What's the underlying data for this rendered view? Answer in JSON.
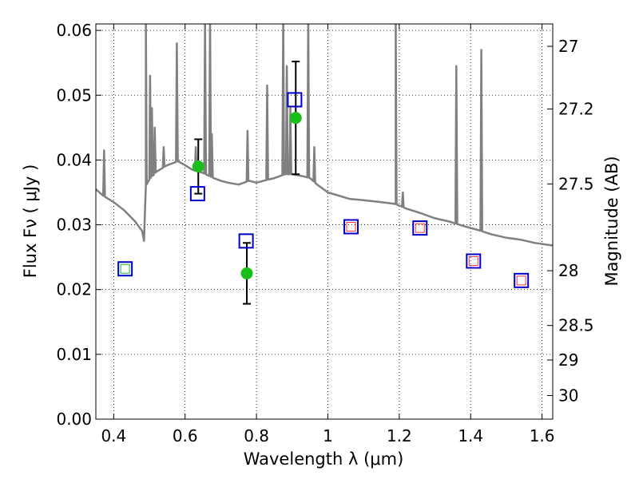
{
  "chart_data": {
    "type": "line",
    "xlabel": "Wavelength  λ (μm)",
    "ylabel": "Flux  Fν  ( μJy )",
    "ylabel_right": "Magnitude (AB)",
    "xlim": [
      0.35,
      1.63
    ],
    "ylim": [
      0.0,
      0.061
    ],
    "x_ticks": [
      0.4,
      0.6,
      0.8,
      1.0,
      1.2,
      1.4,
      1.6
    ],
    "x_tick_labels": [
      "0.4",
      "0.6",
      "0.8",
      "1",
      "1.2",
      "1.4",
      "1.6"
    ],
    "y_ticks": [
      0.0,
      0.01,
      0.02,
      0.03,
      0.04,
      0.05,
      0.06
    ],
    "y_tick_labels": [
      "0.00",
      "0.01",
      "0.02",
      "0.03",
      "0.04",
      "0.05",
      "0.06"
    ],
    "mag_ticks": [
      27,
      27.2,
      27.5,
      28,
      28.5,
      29,
      30
    ],
    "mag_tick_labels": [
      "27",
      "27.2",
      "27.5",
      "28",
      "28.5",
      "29",
      "30"
    ],
    "grid": true,
    "colors": {
      "sed": "#808080",
      "observed": "#19bf19",
      "model": "#0000cc",
      "inner": "#ff3333",
      "errorbar": "#000000"
    },
    "sed_continuum": [
      [
        0.35,
        0.0355
      ],
      [
        0.37,
        0.0345
      ],
      [
        0.4,
        0.0335
      ],
      [
        0.43,
        0.0322
      ],
      [
        0.46,
        0.0305
      ],
      [
        0.48,
        0.029
      ],
      [
        0.485,
        0.0275
      ],
      [
        0.49,
        0.036
      ],
      [
        0.5,
        0.037
      ],
      [
        0.52,
        0.0382
      ],
      [
        0.55,
        0.0392
      ],
      [
        0.58,
        0.0398
      ],
      [
        0.6,
        0.0392
      ],
      [
        0.62,
        0.0385
      ],
      [
        0.65,
        0.038
      ],
      [
        0.68,
        0.0372
      ],
      [
        0.7,
        0.0368
      ],
      [
        0.72,
        0.0365
      ],
      [
        0.75,
        0.0362
      ],
      [
        0.78,
        0.0368
      ],
      [
        0.8,
        0.0365
      ],
      [
        0.82,
        0.0368
      ],
      [
        0.85,
        0.0372
      ],
      [
        0.88,
        0.0378
      ],
      [
        0.9,
        0.0378
      ],
      [
        0.93,
        0.0375
      ],
      [
        0.95,
        0.0372
      ],
      [
        0.97,
        0.0362
      ],
      [
        1.0,
        0.035
      ],
      [
        1.03,
        0.0345
      ],
      [
        1.06,
        0.034
      ],
      [
        1.1,
        0.0338
      ],
      [
        1.15,
        0.0335
      ],
      [
        1.19,
        0.0332
      ],
      [
        1.22,
        0.0325
      ],
      [
        1.26,
        0.0318
      ],
      [
        1.3,
        0.031
      ],
      [
        1.34,
        0.0305
      ],
      [
        1.38,
        0.0298
      ],
      [
        1.42,
        0.0292
      ],
      [
        1.46,
        0.0285
      ],
      [
        1.5,
        0.028
      ],
      [
        1.54,
        0.0277
      ],
      [
        1.58,
        0.0272
      ],
      [
        1.63,
        0.0268
      ]
    ],
    "sed_lines": [
      {
        "x": 0.373,
        "peak": 0.0415
      },
      {
        "x": 0.49,
        "peak": 0.062
      },
      {
        "x": 0.502,
        "peak": 0.053
      },
      {
        "x": 0.507,
        "peak": 0.048
      },
      {
        "x": 0.515,
        "peak": 0.045
      },
      {
        "x": 0.54,
        "peak": 0.042
      },
      {
        "x": 0.577,
        "peak": 0.058
      },
      {
        "x": 0.63,
        "peak": 0.042
      },
      {
        "x": 0.656,
        "peak": 0.062
      },
      {
        "x": 0.67,
        "peak": 0.062
      },
      {
        "x": 0.675,
        "peak": 0.044
      },
      {
        "x": 0.775,
        "peak": 0.0445
      },
      {
        "x": 0.83,
        "peak": 0.0515
      },
      {
        "x": 0.875,
        "peak": 0.062
      },
      {
        "x": 0.885,
        "peak": 0.0545
      },
      {
        "x": 0.895,
        "peak": 0.048
      },
      {
        "x": 0.945,
        "peak": 0.062
      },
      {
        "x": 0.962,
        "peak": 0.042
      },
      {
        "x": 1.19,
        "peak": 0.062
      },
      {
        "x": 1.21,
        "peak": 0.035
      },
      {
        "x": 1.36,
        "peak": 0.0545
      },
      {
        "x": 1.43,
        "peak": 0.057
      }
    ],
    "observed": [
      {
        "x": 0.637,
        "y": 0.039,
        "yerr_low": 0.0348,
        "yerr_high": 0.0432
      },
      {
        "x": 0.773,
        "y": 0.0225,
        "yerr_low": 0.0178,
        "yerr_high": 0.0272
      },
      {
        "x": 0.91,
        "y": 0.0465,
        "yerr_low": 0.0378,
        "yerr_high": 0.0552
      }
    ],
    "model_points": [
      {
        "x": 0.432,
        "y": 0.0232,
        "inner": "#19bf19"
      },
      {
        "x": 0.635,
        "y": 0.0348,
        "inner": ""
      },
      {
        "x": 0.771,
        "y": 0.0275,
        "inner": ""
      },
      {
        "x": 0.907,
        "y": 0.0493,
        "inner": ""
      },
      {
        "x": 1.065,
        "y": 0.0297,
        "inner": "#ff3333"
      },
      {
        "x": 1.258,
        "y": 0.0295,
        "inner": "#ff3333"
      },
      {
        "x": 1.408,
        "y": 0.0244,
        "inner": "#ff3333"
      },
      {
        "x": 1.542,
        "y": 0.0214,
        "inner": "#ff3333"
      }
    ]
  }
}
